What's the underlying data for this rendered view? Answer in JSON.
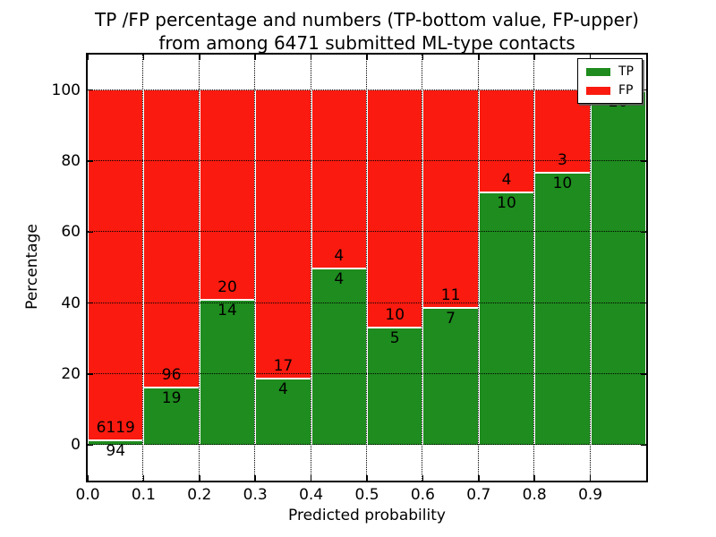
{
  "chart_data": {
    "type": "bar",
    "stacked": true,
    "title": "TP /FP percentage and numbers (TP-bottom value, FP-upper)",
    "subtitle": "from among 6471 submitted ML-type contacts",
    "xlabel": "Predicted probability",
    "ylabel": "Percentage",
    "xlim": [
      0,
      1
    ],
    "ylim": [
      -10,
      110
    ],
    "grid": true,
    "legend_position": "upper right",
    "colors": {
      "tp": "#1e8c1e",
      "fp": "#fa1a0f",
      "axis": "#000000"
    },
    "legend": [
      {
        "key": "tp",
        "label": "TP"
      },
      {
        "key": "fp",
        "label": "FP"
      }
    ],
    "yticks": [
      {
        "value": 0,
        "label": "0"
      },
      {
        "value": 20,
        "label": "20"
      },
      {
        "value": 40,
        "label": "40"
      },
      {
        "value": 60,
        "label": "60"
      },
      {
        "value": 80,
        "label": "80"
      },
      {
        "value": 100,
        "label": "100"
      }
    ],
    "xticks": [
      {
        "value": 0.0,
        "label": "0.0"
      },
      {
        "value": 0.1,
        "label": "0.1"
      },
      {
        "value": 0.2,
        "label": "0.2"
      },
      {
        "value": 0.3,
        "label": "0.3"
      },
      {
        "value": 0.4,
        "label": "0.4"
      },
      {
        "value": 0.5,
        "label": "0.5"
      },
      {
        "value": 0.6,
        "label": "0.6"
      },
      {
        "value": 0.7,
        "label": "0.7"
      },
      {
        "value": 0.8,
        "label": "0.8"
      },
      {
        "value": 0.9,
        "label": "0.9"
      }
    ],
    "bins": [
      {
        "x0": 0.0,
        "x1": 0.1,
        "tp": 94,
        "fp": 6119,
        "tp_label": "94",
        "fp_label": "6119"
      },
      {
        "x0": 0.1,
        "x1": 0.2,
        "tp": 19,
        "fp": 96,
        "tp_label": "19",
        "fp_label": "96"
      },
      {
        "x0": 0.2,
        "x1": 0.3,
        "tp": 14,
        "fp": 20,
        "tp_label": "14",
        "fp_label": "20"
      },
      {
        "x0": 0.3,
        "x1": 0.4,
        "tp": 4,
        "fp": 17,
        "tp_label": "4",
        "fp_label": "17"
      },
      {
        "x0": 0.4,
        "x1": 0.5,
        "tp": 4,
        "fp": 4,
        "tp_label": "4",
        "fp_label": "4"
      },
      {
        "x0": 0.5,
        "x1": 0.6,
        "tp": 5,
        "fp": 10,
        "tp_label": "5",
        "fp_label": "10"
      },
      {
        "x0": 0.6,
        "x1": 0.7,
        "tp": 7,
        "fp": 11,
        "tp_label": "7",
        "fp_label": "11"
      },
      {
        "x0": 0.7,
        "x1": 0.8,
        "tp": 10,
        "fp": 4,
        "tp_label": "10",
        "fp_label": "4"
      },
      {
        "x0": 0.8,
        "x1": 0.9,
        "tp": 10,
        "fp": 3,
        "tp_label": "10",
        "fp_label": "3"
      },
      {
        "x0": 0.9,
        "x1": 1.0,
        "tp": 20,
        "fp": 0,
        "tp_label": "20",
        "fp_label": null
      }
    ]
  }
}
